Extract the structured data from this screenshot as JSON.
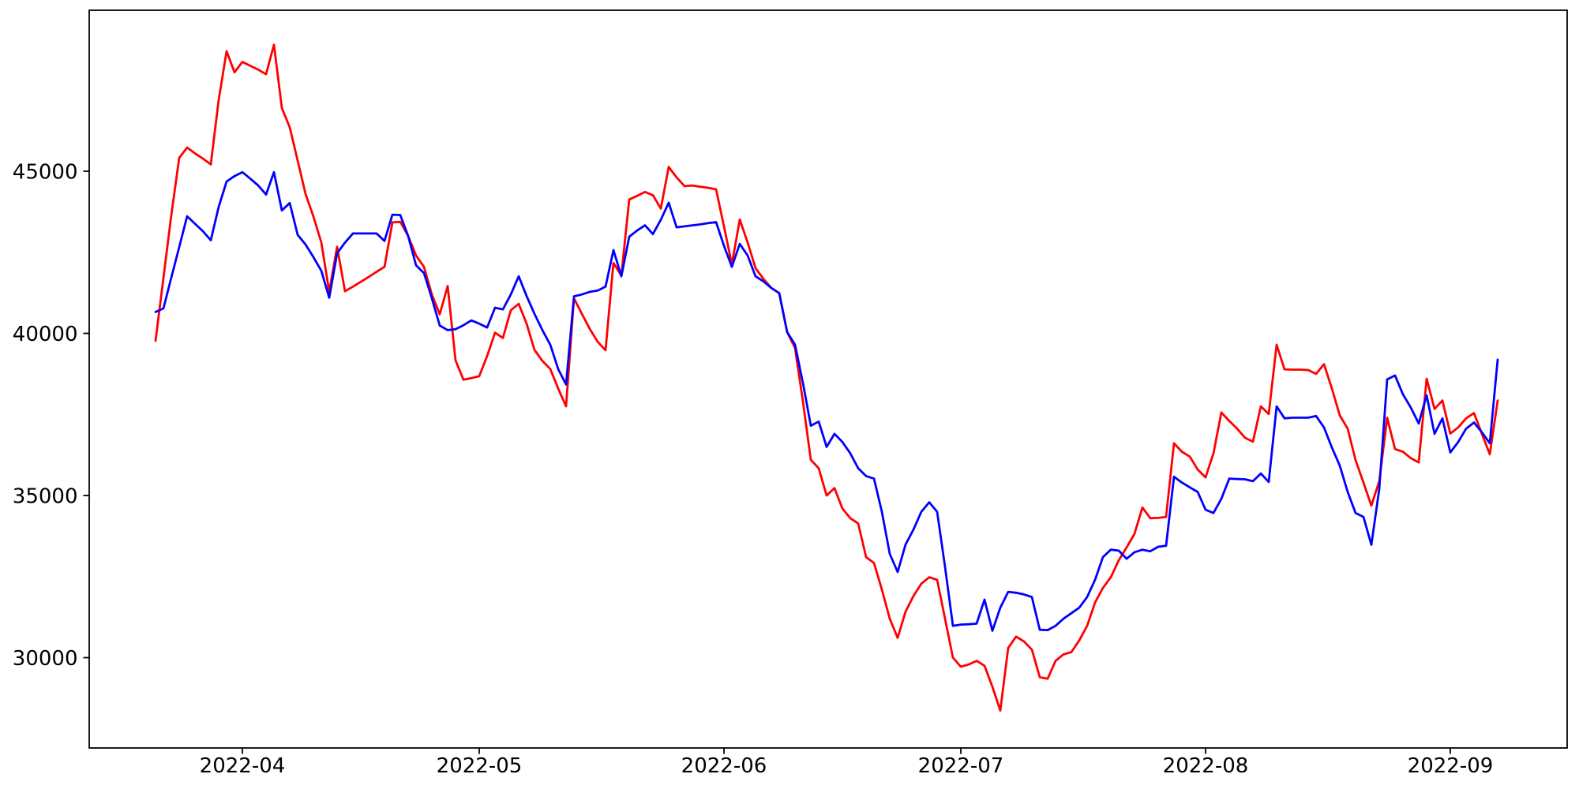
{
  "chart_data": {
    "type": "line",
    "title": "",
    "xlabel": "",
    "ylabel": "",
    "grid": false,
    "legend": false,
    "background_color": "#ffffff",
    "axis_color": "#000000",
    "xlim_days": [
      -8.4,
      178.8
    ],
    "ylim": [
      27215,
      49963
    ],
    "x_ticks": [
      {
        "date": "2022-04-01",
        "label": "2022-04"
      },
      {
        "date": "2022-05-01",
        "label": "2022-05"
      },
      {
        "date": "2022-06-01",
        "label": "2022-06"
      },
      {
        "date": "2022-07-01",
        "label": "2022-07"
      },
      {
        "date": "2022-08-01",
        "label": "2022-08"
      },
      {
        "date": "2022-09-01",
        "label": "2022-09"
      }
    ],
    "y_ticks": [
      {
        "value": 30000,
        "label": "30000"
      },
      {
        "value": 35000,
        "label": "35000"
      },
      {
        "value": 40000,
        "label": "40000"
      },
      {
        "value": 45000,
        "label": "45000"
      }
    ],
    "x": [
      "2022-03-21",
      "2022-03-22",
      "2022-03-23",
      "2022-03-24",
      "2022-03-25",
      "2022-03-26",
      "2022-03-27",
      "2022-03-28",
      "2022-03-29",
      "2022-03-30",
      "2022-03-31",
      "2022-04-01",
      "2022-04-02",
      "2022-04-03",
      "2022-04-04",
      "2022-04-05",
      "2022-04-06",
      "2022-04-07",
      "2022-04-08",
      "2022-04-09",
      "2022-04-10",
      "2022-04-11",
      "2022-04-12",
      "2022-04-13",
      "2022-04-14",
      "2022-04-15",
      "2022-04-16",
      "2022-04-17",
      "2022-04-18",
      "2022-04-19",
      "2022-04-20",
      "2022-04-21",
      "2022-04-22",
      "2022-04-23",
      "2022-04-24",
      "2022-04-25",
      "2022-04-26",
      "2022-04-27",
      "2022-04-28",
      "2022-04-29",
      "2022-04-30",
      "2022-05-01",
      "2022-05-02",
      "2022-05-03",
      "2022-05-04",
      "2022-05-05",
      "2022-05-06",
      "2022-05-07",
      "2022-05-08",
      "2022-05-09",
      "2022-05-10",
      "2022-05-11",
      "2022-05-12",
      "2022-05-13",
      "2022-05-14",
      "2022-05-15",
      "2022-05-16",
      "2022-05-17",
      "2022-05-18",
      "2022-05-19",
      "2022-05-20",
      "2022-05-21",
      "2022-05-22",
      "2022-05-23",
      "2022-05-24",
      "2022-05-25",
      "2022-05-26",
      "2022-05-27",
      "2022-05-28",
      "2022-05-29",
      "2022-05-30",
      "2022-05-31",
      "2022-06-01",
      "2022-06-02",
      "2022-06-03",
      "2022-06-04",
      "2022-06-05",
      "2022-06-06",
      "2022-06-07",
      "2022-06-08",
      "2022-06-09",
      "2022-06-10",
      "2022-06-11",
      "2022-06-12",
      "2022-06-13",
      "2022-06-14",
      "2022-06-15",
      "2022-06-16",
      "2022-06-17",
      "2022-06-18",
      "2022-06-19",
      "2022-06-20",
      "2022-06-21",
      "2022-06-22",
      "2022-06-23",
      "2022-06-24",
      "2022-06-25",
      "2022-06-26",
      "2022-06-27",
      "2022-06-28",
      "2022-06-29",
      "2022-06-30",
      "2022-07-01",
      "2022-07-02",
      "2022-07-03",
      "2022-07-04",
      "2022-07-05",
      "2022-07-06",
      "2022-07-07",
      "2022-07-08",
      "2022-07-09",
      "2022-07-10",
      "2022-07-11",
      "2022-07-12",
      "2022-07-13",
      "2022-07-14",
      "2022-07-15",
      "2022-07-16",
      "2022-07-17",
      "2022-07-18",
      "2022-07-19",
      "2022-07-20",
      "2022-07-21",
      "2022-07-22",
      "2022-07-23",
      "2022-07-24",
      "2022-07-25",
      "2022-07-26",
      "2022-07-27",
      "2022-07-28",
      "2022-07-29",
      "2022-07-30",
      "2022-07-31",
      "2022-08-01",
      "2022-08-02",
      "2022-08-03",
      "2022-08-04",
      "2022-08-05",
      "2022-08-06",
      "2022-08-07",
      "2022-08-08",
      "2022-08-09",
      "2022-08-10",
      "2022-08-11",
      "2022-08-12",
      "2022-08-13",
      "2022-08-14",
      "2022-08-15",
      "2022-08-16",
      "2022-08-17",
      "2022-08-18",
      "2022-08-19",
      "2022-08-20",
      "2022-08-21",
      "2022-08-22",
      "2022-08-23",
      "2022-08-24",
      "2022-08-25",
      "2022-08-26",
      "2022-08-27",
      "2022-08-28",
      "2022-08-29",
      "2022-08-30",
      "2022-08-31",
      "2022-09-01",
      "2022-09-02",
      "2022-09-03",
      "2022-09-04",
      "2022-09-05",
      "2022-09-06",
      "2022-09-07"
    ],
    "series": [
      {
        "name": "series-red",
        "color": "#ff0000",
        "values": [
          39770,
          41700,
          43650,
          45410,
          45730,
          45550,
          45390,
          45210,
          47200,
          48700,
          48050,
          48370,
          48250,
          48130,
          47990,
          48900,
          46950,
          46350,
          45330,
          44300,
          43600,
          42800,
          41280,
          42670,
          41300,
          41440,
          41590,
          41740,
          41900,
          42050,
          43420,
          43440,
          43000,
          42400,
          42050,
          41200,
          40590,
          41460,
          39170,
          38570,
          38620,
          38680,
          39300,
          40020,
          39860,
          40710,
          40910,
          40300,
          39490,
          39150,
          38900,
          38300,
          37750,
          41080,
          40600,
          40140,
          39740,
          39480,
          42170,
          41780,
          44130,
          44240,
          44360,
          44260,
          43850,
          45130,
          44810,
          44540,
          44560,
          44520,
          44490,
          44440,
          43300,
          42130,
          43510,
          42800,
          42010,
          41680,
          41400,
          41240,
          40040,
          39550,
          37900,
          36100,
          35840,
          35000,
          35230,
          34600,
          34300,
          34140,
          33100,
          32920,
          32100,
          31200,
          30610,
          31420,
          31900,
          32280,
          32480,
          32400,
          31200,
          30000,
          29720,
          29790,
          29900,
          29750,
          29100,
          28370,
          30300,
          30650,
          30500,
          30250,
          29400,
          29350,
          29900,
          30100,
          30170,
          30530,
          30980,
          31700,
          32150,
          32480,
          33000,
          33400,
          33820,
          34630,
          34300,
          34310,
          34340,
          36610,
          36350,
          36200,
          35800,
          35560,
          36300,
          37560,
          37300,
          37060,
          36780,
          36660,
          37750,
          37510,
          39650,
          38890,
          38880,
          38880,
          38870,
          38750,
          39050,
          38300,
          37470,
          37060,
          36090,
          35400,
          34690,
          35440,
          37400,
          36430,
          36350,
          36150,
          36020,
          38600,
          37670,
          37930,
          36910,
          37100,
          37380,
          37540,
          36900,
          36270,
          37930
        ]
      },
      {
        "name": "series-blue",
        "color": "#0000ff",
        "values": [
          40660,
          40770,
          41720,
          42660,
          43610,
          43380,
          43150,
          42870,
          43900,
          44680,
          44850,
          44970,
          44770,
          44560,
          44280,
          44970,
          43790,
          44020,
          43040,
          42740,
          42350,
          41930,
          41100,
          42470,
          42800,
          43080,
          43080,
          43080,
          43080,
          42850,
          43660,
          43650,
          43000,
          42100,
          41860,
          41080,
          40240,
          40100,
          40130,
          40250,
          40400,
          40300,
          40180,
          40790,
          40740,
          41200,
          41760,
          41150,
          40600,
          40100,
          39650,
          38900,
          38420,
          41140,
          41200,
          41280,
          41320,
          41440,
          42570,
          41760,
          42980,
          43170,
          43330,
          43060,
          43500,
          44030,
          43270,
          43300,
          43330,
          43360,
          43400,
          43430,
          42700,
          42050,
          42760,
          42400,
          41760,
          41600,
          41400,
          41240,
          40040,
          39650,
          38470,
          37150,
          37280,
          36500,
          36900,
          36650,
          36300,
          35840,
          35600,
          35520,
          34500,
          33200,
          32640,
          33490,
          33950,
          34500,
          34790,
          34500,
          32800,
          30980,
          31020,
          31030,
          31050,
          31790,
          30830,
          31540,
          32030,
          32000,
          31950,
          31870,
          30860,
          30850,
          30980,
          31200,
          31370,
          31540,
          31870,
          32400,
          33100,
          33330,
          33300,
          33050,
          33250,
          33330,
          33280,
          33420,
          33450,
          35580,
          35400,
          35250,
          35110,
          34560,
          34460,
          34900,
          35520,
          35510,
          35500,
          35440,
          35680,
          35420,
          37750,
          37380,
          37400,
          37400,
          37400,
          37450,
          37100,
          36480,
          35920,
          35110,
          34460,
          34340,
          33480,
          35200,
          38580,
          38700,
          38120,
          37710,
          37220,
          38090,
          36900,
          37380,
          36330,
          36650,
          37060,
          37250,
          36950,
          36610,
          39190
        ]
      }
    ]
  }
}
